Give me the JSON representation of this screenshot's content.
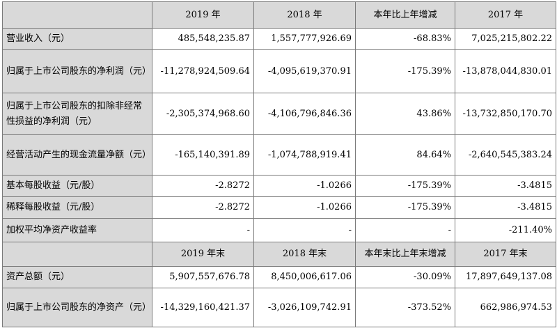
{
  "header1": [
    "",
    "2019 年",
    "2018 年",
    "本年比上年增减",
    "2017 年"
  ],
  "rows1": [
    {
      "label": "营业收入（元）",
      "values": [
        "485,548,235.87",
        "1,557,777,926.69",
        "-68.83%",
        "7,025,215,802.22"
      ]
    },
    {
      "label": "归属于上市公司股东的净利润（元）",
      "values": [
        "-11,278,924,509.64",
        "-4,095,619,370.91",
        "-175.39%",
        "-13,878,044,830.01"
      ]
    },
    {
      "label": "归属于上市公司股东的扣除非经常性损益的净利润（元）",
      "values": [
        "-2,305,374,968.60",
        "-4,106,796,846.36",
        "43.86%",
        "-13,732,850,170.70"
      ]
    },
    {
      "label": "经营活动产生的现金流量净额（元）",
      "values": [
        "-165,140,391.89",
        "-1,074,788,919.41",
        "84.64%",
        "-2,640,545,383.24"
      ]
    },
    {
      "label": "基本每股收益（元/股）",
      "values": [
        "-2.8272",
        "-1.0266",
        "-175.39%",
        "-3.4815"
      ]
    },
    {
      "label": "稀释每股收益（元/股）",
      "values": [
        "-2.8272",
        "-1.0266",
        "-175.39%",
        "-3.4815"
      ]
    },
    {
      "label": "加权平均净资产收益率",
      "values": [
        "-",
        "-",
        "-",
        "-211.40%"
      ]
    }
  ],
  "header2": [
    "",
    "2019 年末",
    "2018 年末",
    "本年末比上年末增减",
    "2017 年末"
  ],
  "rows2": [
    {
      "label": "资产总额（元）",
      "values": [
        "5,907,557,676.78",
        "8,450,006,617.06",
        "-30.09%",
        "17,897,649,137.08"
      ]
    },
    {
      "label": "归属于上市公司股东的净资产（元）",
      "values": [
        "-14,329,160,421.37",
        "-3,026,109,742.91",
        "-373.52%",
        "662,986,974.53"
      ]
    }
  ]
}
